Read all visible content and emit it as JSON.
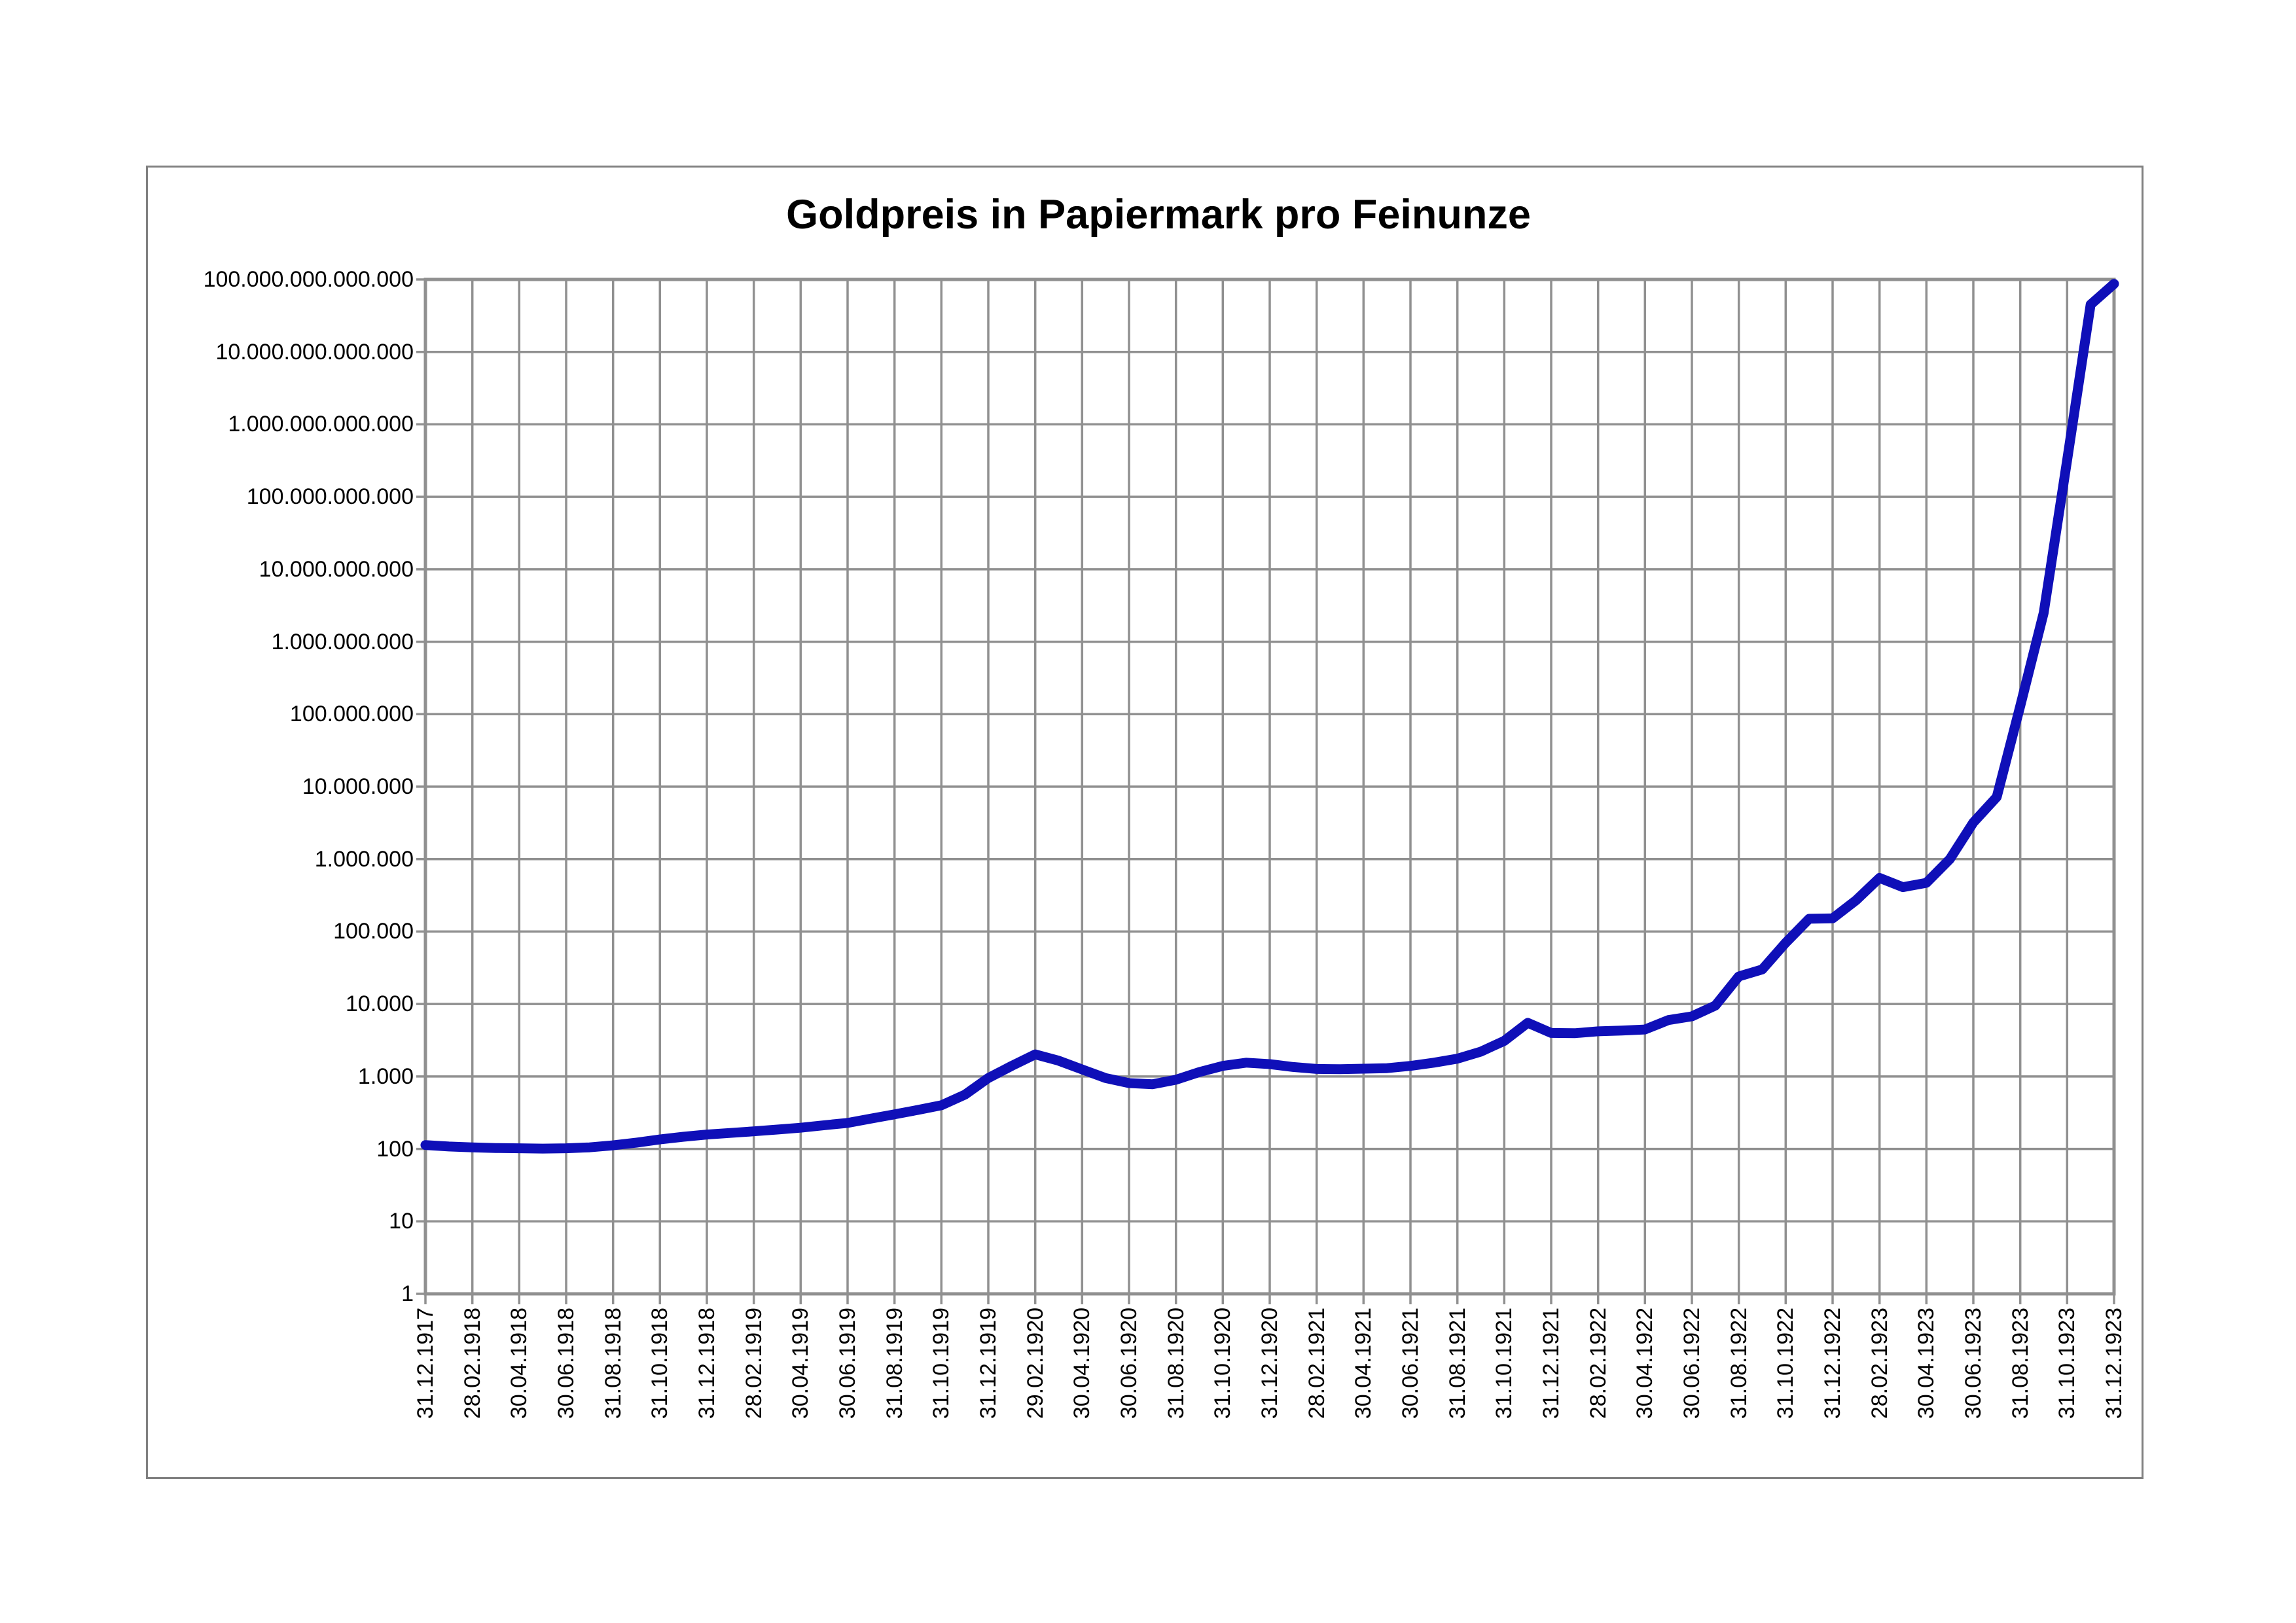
{
  "chart": {
    "title": "Goldpreis in Papiermark pro Feinunze"
  },
  "colors": {
    "line": "#0f0fb8",
    "grid": "#909090",
    "frame": "#909090",
    "border": "#808080",
    "text": "#000000",
    "background": "#ffffff"
  },
  "chart_data": {
    "type": "line",
    "title": "Goldpreis in Papiermark pro Feinunze",
    "xlabel": "",
    "ylabel": "",
    "y_scale": "log10",
    "ylim": [
      1,
      100000000000000
    ],
    "grid": true,
    "legend": false,
    "y_tick_labels": [
      "100.000.000.000.000",
      "10.000.000.000.000",
      "1.000.000.000.000",
      "100.000.000.000",
      "10.000.000.000",
      "1.000.000.000",
      "100.000.000",
      "10.000.000",
      "1.000.000",
      "100.000",
      "10.000",
      "1.000",
      "100",
      "10",
      "1"
    ],
    "y_tick_values": [
      100000000000000,
      10000000000000,
      1000000000000,
      100000000000,
      10000000000,
      1000000000,
      100000000,
      10000000,
      1000000,
      100000,
      10000,
      1000,
      100,
      10,
      1
    ],
    "x_tick_labels": [
      "31.12.1917",
      "28.02.1918",
      "30.04.1918",
      "30.06.1918",
      "31.08.1918",
      "31.10.1918",
      "31.12.1918",
      "28.02.1919",
      "30.04.1919",
      "30.06.1919",
      "31.08.1919",
      "31.10.1919",
      "31.12.1919",
      "29.02.1920",
      "30.04.1920",
      "30.06.1920",
      "31.08.1920",
      "31.10.1920",
      "31.12.1920",
      "28.02.1921",
      "30.04.1921",
      "30.06.1921",
      "31.08.1921",
      "31.10.1921",
      "31.12.1921",
      "28.02.1922",
      "30.04.1922",
      "30.06.1922",
      "31.08.1922",
      "31.10.1922",
      "31.12.1922",
      "28.02.1923",
      "30.04.1923",
      "30.06.1923",
      "31.08.1923",
      "31.10.1923",
      "31.12.1923"
    ],
    "series": [
      {
        "name": "Goldpreis in Papiermark pro Feinunze",
        "x_dates": [
          "31.12.1917",
          "31.01.1918",
          "28.02.1918",
          "31.03.1918",
          "30.04.1918",
          "31.05.1918",
          "30.06.1918",
          "31.07.1918",
          "31.08.1918",
          "30.09.1918",
          "31.10.1918",
          "30.11.1918",
          "31.12.1918",
          "31.01.1919",
          "28.02.1919",
          "31.03.1919",
          "30.04.1919",
          "31.05.1919",
          "30.06.1919",
          "31.07.1919",
          "31.08.1919",
          "30.09.1919",
          "31.10.1919",
          "30.11.1919",
          "31.12.1919",
          "31.01.1920",
          "29.02.1920",
          "31.03.1920",
          "30.04.1920",
          "31.05.1920",
          "30.06.1920",
          "31.07.1920",
          "31.08.1920",
          "30.09.1920",
          "31.10.1920",
          "30.11.1920",
          "31.12.1920",
          "31.01.1921",
          "28.02.1921",
          "31.03.1921",
          "30.04.1921",
          "31.05.1921",
          "30.06.1921",
          "31.07.1921",
          "31.08.1921",
          "30.09.1921",
          "31.10.1921",
          "30.11.1921",
          "31.12.1921",
          "31.01.1922",
          "28.02.1922",
          "31.03.1922",
          "30.04.1922",
          "31.05.1922",
          "30.06.1922",
          "31.07.1922",
          "31.08.1922",
          "30.09.1922",
          "31.10.1922",
          "30.11.1922",
          "31.12.1922",
          "31.01.1923",
          "28.02.1923",
          "31.03.1923",
          "30.04.1923",
          "31.05.1923",
          "30.06.1923",
          "31.07.1923",
          "31.08.1923",
          "30.09.1923",
          "31.10.1923",
          "30.11.1923",
          "31.12.1923"
        ],
        "values": [
          113,
          108,
          105,
          103,
          102,
          101,
          102,
          105,
          112,
          122,
          135,
          147,
          158,
          166,
          175,
          185,
          196,
          212,
          228,
          262,
          300,
          345,
          400,
          560,
          950,
          1400,
          2020,
          1650,
          1250,
          950,
          810,
          780,
          900,
          1150,
          1400,
          1550,
          1480,
          1350,
          1270,
          1260,
          1280,
          1300,
          1400,
          1550,
          1760,
          2200,
          3100,
          5500,
          3980,
          3950,
          4200,
          4300,
          4450,
          6000,
          6750,
          9500,
          24000,
          30000,
          70000,
          150000,
          152000,
          270000,
          550000,
          410000,
          470000,
          1000000,
          3200000,
          7200000,
          130000000,
          2500000000,
          320000000000,
          45000000000000,
          87000000000000
        ]
      }
    ]
  }
}
